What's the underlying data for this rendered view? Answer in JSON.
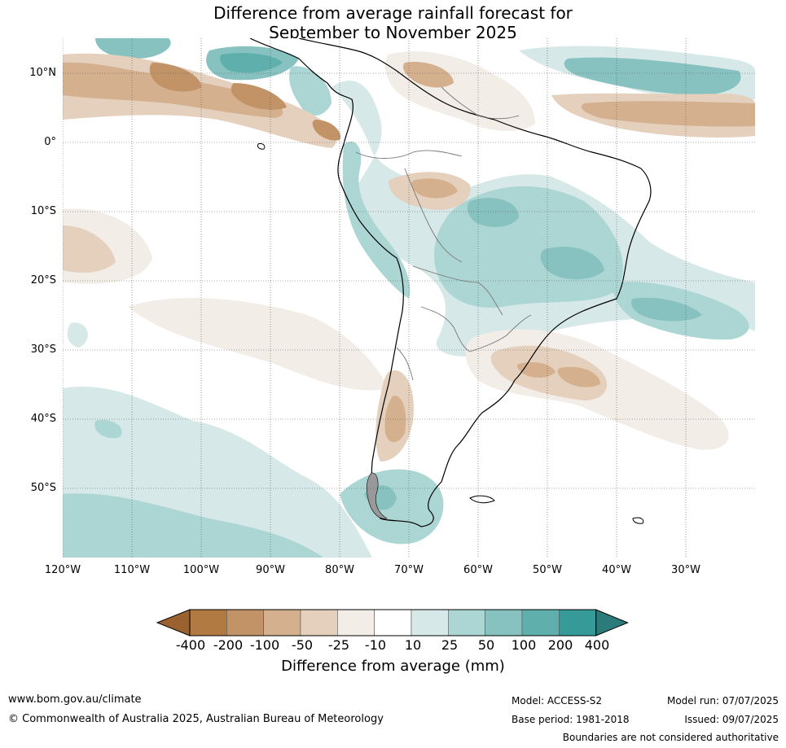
{
  "title_line1": "Difference from average rainfall forecast for",
  "title_line2": "September to November 2025",
  "latitude_labels": [
    "10°N",
    "0°",
    "10°S",
    "20°S",
    "30°S",
    "40°S",
    "50°S"
  ],
  "longitude_labels": [
    "120°W",
    "110°W",
    "100°W",
    "90°W",
    "80°W",
    "70°W",
    "60°W",
    "50°W",
    "40°W",
    "30°W"
  ],
  "colorbar": {
    "ticks": [
      "-400",
      "-200",
      "-100",
      "-50",
      "-25",
      "-10",
      "10",
      "25",
      "50",
      "100",
      "200",
      "400"
    ],
    "label": "Difference from average (mm)",
    "colors": [
      "#9b6230",
      "#b07a42",
      "#c19366",
      "#d4b08e",
      "#e4d0bd",
      "#f2ede6",
      "#ffffff",
      "#d6e8e7",
      "#acd6d4",
      "#87c2c0",
      "#5fb0ac",
      "#369b98",
      "#2a7b79"
    ]
  },
  "footer": {
    "website": "www.bom.gov.au/climate",
    "copyright": "© Commonwealth of Australia 2025, Australian Bureau of Meteorology",
    "model": "Model: ACCESS-S2",
    "model_run": "Model run: 07/07/2025",
    "base_period": "Base period: 1981-2018",
    "issued": "Issued: 09/07/2025",
    "disclaimer": "Boundaries are not considered authoritative"
  }
}
